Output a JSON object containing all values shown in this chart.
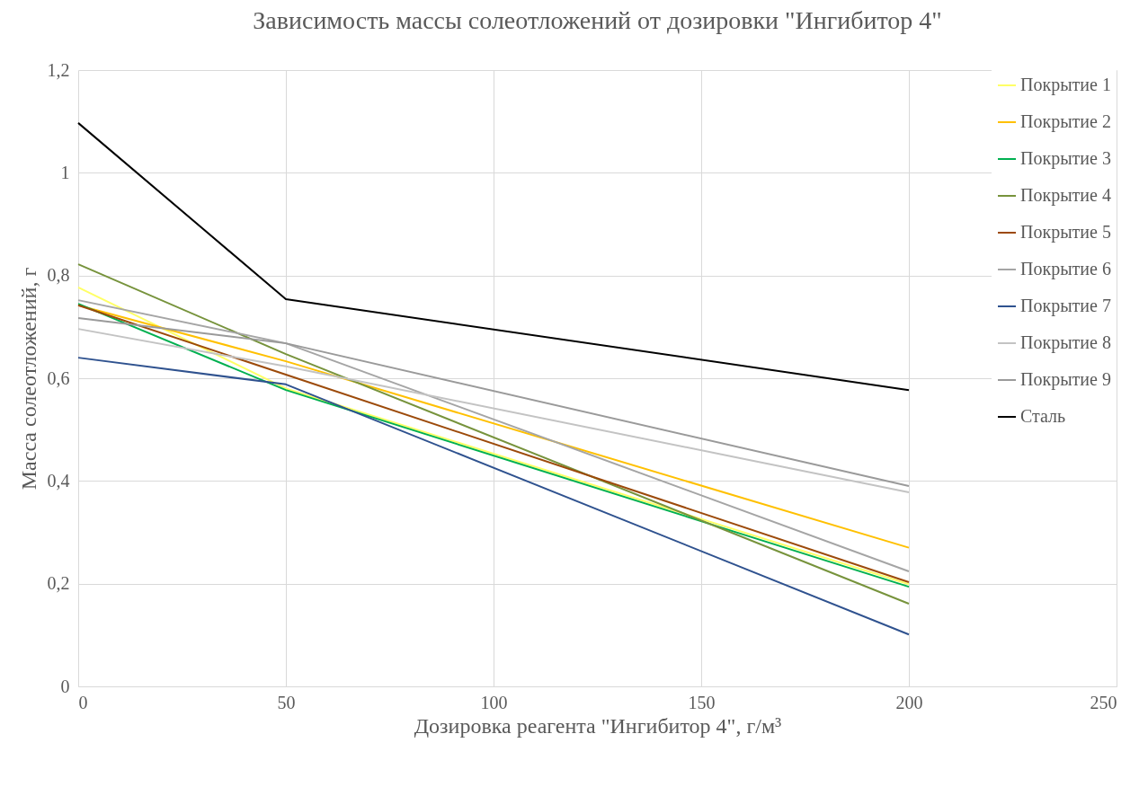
{
  "chart_data": {
    "type": "line",
    "title": "Зависимость массы солеотложений от дозировки \"Ингибитор 4\"",
    "xlabel": "Дозировка реагента \"Ингибитор 4\", г/м³",
    "ylabel": "Масса солеотложений, г",
    "x": [
      0,
      50,
      200
    ],
    "xlim": [
      0,
      250
    ],
    "xticks": [
      0,
      50,
      100,
      150,
      200,
      250
    ],
    "ylim": [
      0,
      1.2
    ],
    "yticks": [
      0,
      {
        "value": 0.2,
        "label": "0,2"
      },
      {
        "value": 0.4,
        "label": "0,4"
      },
      {
        "value": 0.6,
        "label": "0,6"
      },
      {
        "value": 0.8,
        "label": "0,8"
      },
      1,
      {
        "value": 1.2,
        "label": "1,2"
      }
    ],
    "grid": true,
    "legend": "right",
    "line_style": "solid",
    "series": [
      {
        "name": "Покрытие 1",
        "color": "#ffff66",
        "values": [
          0.777,
          0.58,
          0.199
        ]
      },
      {
        "name": "Покрытие 2",
        "color": "#ffc000",
        "values": [
          0.742,
          0.633,
          0.27
        ]
      },
      {
        "name": "Покрытие 3",
        "color": "#00b050",
        "values": [
          0.745,
          0.577,
          0.194
        ]
      },
      {
        "name": "Покрытие 4",
        "color": "#77933c",
        "values": [
          0.822,
          0.647,
          0.161
        ]
      },
      {
        "name": "Покрытие 5",
        "color": "#9c4a0a",
        "values": [
          0.742,
          0.607,
          0.203
        ]
      },
      {
        "name": "Покрытие 6",
        "color": "#a5a5a5",
        "values": [
          0.752,
          0.668,
          0.224
        ]
      },
      {
        "name": "Покрытие 7",
        "color": "#2f528f",
        "values": [
          0.64,
          0.588,
          0.101
        ]
      },
      {
        "name": "Покрытие 8",
        "color": "#c3c3c3",
        "values": [
          0.696,
          0.623,
          0.378
        ]
      },
      {
        "name": "Покрытие 9",
        "color": "#9a9a9a",
        "values": [
          0.717,
          0.668,
          0.39
        ]
      },
      {
        "name": "Сталь",
        "color": "#000000",
        "values": [
          1.097,
          0.754,
          0.577
        ]
      }
    ]
  }
}
